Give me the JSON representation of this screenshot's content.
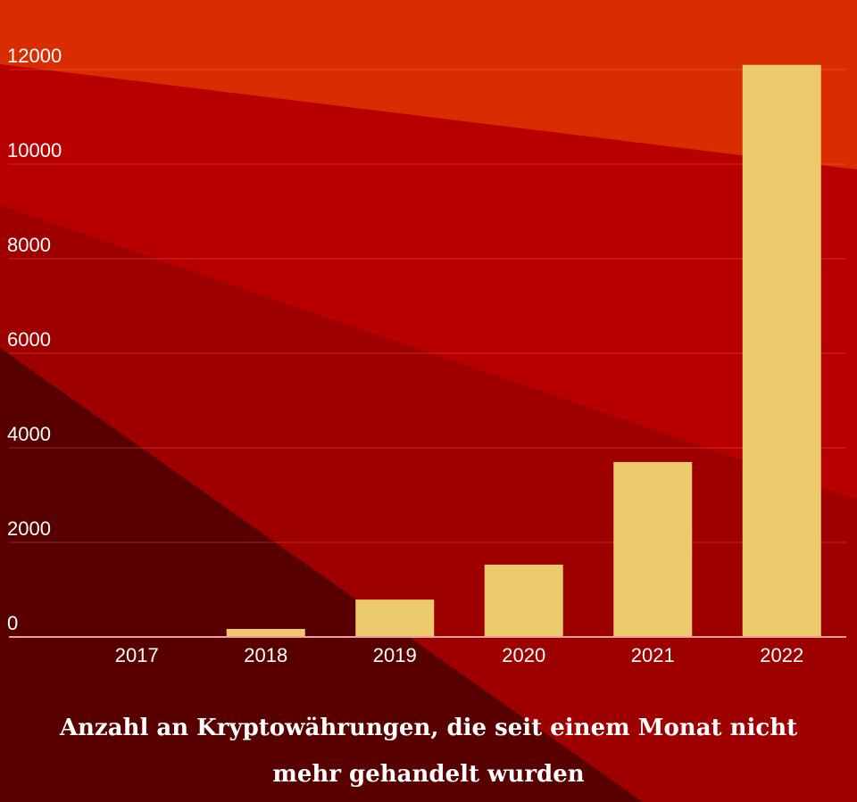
{
  "chart_data": {
    "type": "bar",
    "title": "Anzahl an Kryptowährungen, die seit einem Monat nicht mehr gehandelt wurden",
    "categories": [
      "2017",
      "2018",
      "2019",
      "2020",
      "2021",
      "2022"
    ],
    "values": [
      0,
      170,
      790,
      1530,
      3700,
      12100
    ],
    "xlabel": "",
    "ylabel": "",
    "ylim": [
      0,
      12000
    ],
    "yticks": [
      "0",
      "2000",
      "4000",
      "6000",
      "8000",
      "10000",
      "12000"
    ],
    "grid": true,
    "bar_color": "#ecc96a"
  },
  "title_lines": [
    "Anzahl an Kryptowährungen, die seit einem Monat nicht",
    "mehr gehandelt wurden"
  ]
}
